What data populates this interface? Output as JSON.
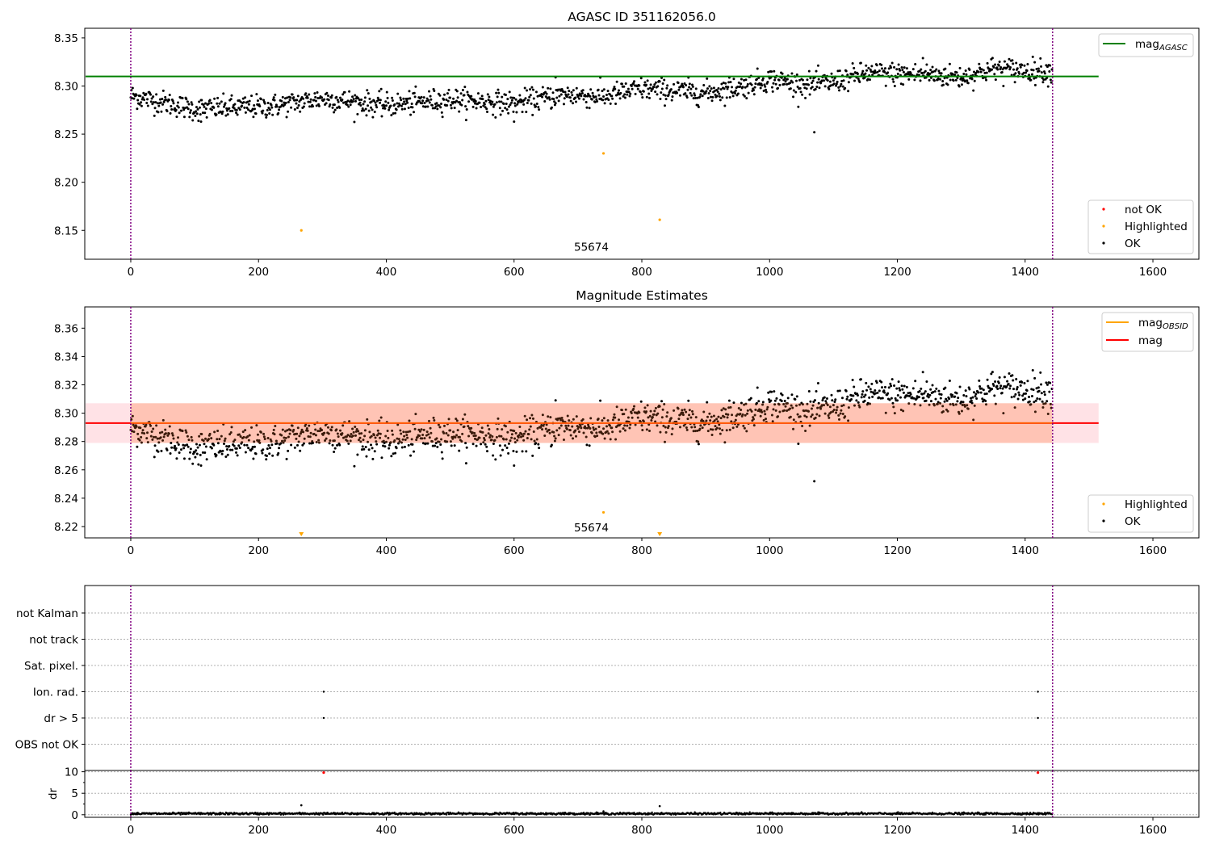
{
  "figure": {
    "panel1_title": "AGASC ID 351162056.0",
    "panel2_title": "Magnitude Estimates"
  },
  "colors": {
    "ok": "#000000",
    "highlighted": "#ffa500",
    "not_ok": "#ff0000",
    "agasc_line": "#008000",
    "mag_line": "#ff0000",
    "obsid_line": "#ffa500",
    "obs_boundary": "#800080",
    "band_outer": "#ffb6c1",
    "band_inner": "#ffa07a"
  },
  "chart_data": [
    {
      "type": "scatter",
      "title": "AGASC ID 351162056.0",
      "xlim": [
        -72,
        1672
      ],
      "ylim": [
        8.12,
        8.36
      ],
      "xticks": [
        0,
        200,
        400,
        600,
        800,
        1000,
        1200,
        1400,
        1600
      ],
      "yticks": [
        8.15,
        8.2,
        8.25,
        8.3,
        8.35
      ],
      "x_range_points": [
        0,
        1442
      ],
      "trend": [
        [
          0,
          8.29
        ],
        [
          100,
          8.276
        ],
        [
          220,
          8.279
        ],
        [
          300,
          8.287
        ],
        [
          400,
          8.28
        ],
        [
          500,
          8.286
        ],
        [
          600,
          8.282
        ],
        [
          680,
          8.291
        ],
        [
          740,
          8.289
        ],
        [
          800,
          8.297
        ],
        [
          900,
          8.293
        ],
        [
          960,
          8.3
        ],
        [
          1000,
          8.307
        ],
        [
          1060,
          8.301
        ],
        [
          1100,
          8.304
        ],
        [
          1150,
          8.313
        ],
        [
          1250,
          8.312
        ],
        [
          1300,
          8.309
        ],
        [
          1350,
          8.318
        ],
        [
          1442,
          8.315
        ]
      ],
      "scatter_noise": 0.006,
      "outliers_ok": [
        [
          1070,
          8.252
        ],
        [
          600,
          8.263
        ],
        [
          110,
          8.263
        ],
        [
          665,
          8.309
        ],
        [
          1240,
          8.329
        ]
      ],
      "highlighted": [
        [
          267,
          8.15
        ],
        [
          740,
          8.23
        ],
        [
          828,
          8.161
        ]
      ],
      "agasc_mag": 8.31,
      "agasc_line_x": [
        -72,
        1515
      ],
      "obs_boundaries": [
        0,
        1443
      ],
      "annotation": {
        "text": "55674",
        "x": 721,
        "y": 8.127
      },
      "legend_top": [
        {
          "label": "mag",
          "sub": "AGASC",
          "kind": "line",
          "color": "#008000"
        }
      ],
      "legend_bottom": [
        {
          "label": "not OK",
          "kind": "point",
          "color": "#ff0000"
        },
        {
          "label": "Highlighted",
          "kind": "point",
          "color": "#ffa500"
        },
        {
          "label": "OK",
          "kind": "point",
          "color": "#000000"
        }
      ]
    },
    {
      "type": "scatter",
      "title": "Magnitude Estimates",
      "xlim": [
        -72,
        1672
      ],
      "ylim": [
        8.212,
        8.375
      ],
      "xticks": [
        0,
        200,
        400,
        600,
        800,
        1000,
        1200,
        1400,
        1600
      ],
      "yticks": [
        8.22,
        8.24,
        8.26,
        8.28,
        8.3,
        8.32,
        8.34,
        8.36
      ],
      "highlighted": [
        [
          740,
          8.23
        ]
      ],
      "highlighted_offscale": [
        [
          267,
          8.214
        ],
        [
          828,
          8.214
        ]
      ],
      "mag": 8.293,
      "mag_band_outer": [
        8.279,
        8.307
      ],
      "mag_band_inner_x": [
        0,
        1442
      ],
      "mag_line_x": [
        -72,
        1515
      ],
      "obsid_segments": [
        {
          "x": [
            0,
            1442
          ],
          "mag": 8.293
        }
      ],
      "obs_boundaries": [
        0,
        1443
      ],
      "annotation": {
        "text": "55674",
        "x": 721,
        "y": 8.2155
      },
      "legend_top": [
        {
          "label": "mag",
          "sub": "OBSID",
          "kind": "line",
          "color": "#ffa500"
        },
        {
          "label": "mag",
          "kind": "line",
          "color": "#ff0000"
        }
      ],
      "legend_bottom": [
        {
          "label": "Highlighted",
          "kind": "point",
          "color": "#ffa500"
        },
        {
          "label": "OK",
          "kind": "point",
          "color": "#000000"
        }
      ]
    },
    {
      "type": "scatter",
      "title": "",
      "xlim": [
        -72,
        1672
      ],
      "flag_rows": [
        "not Kalman",
        "not track",
        "Sat. pixel.",
        "Ion. rad.",
        "dr > 5",
        "OBS not OK"
      ],
      "flag_points": [
        {
          "row": "Ion. rad.",
          "x": [
            302,
            1420
          ]
        },
        {
          "row": "dr > 5",
          "x": [
            302,
            1420
          ]
        }
      ],
      "obs_boundaries": [
        0,
        1443
      ]
    },
    {
      "type": "scatter",
      "title": "",
      "ylabel": "dr",
      "xlim": [
        -72,
        1672
      ],
      "ylim": [
        -0.6,
        10.3
      ],
      "yticks": [
        0,
        5,
        10
      ],
      "xticks": [
        0,
        200,
        400,
        600,
        800,
        1000,
        1200,
        1400,
        1600
      ],
      "dr_baseline": 0.25,
      "dr_noise": 0.2,
      "dr_points_ok": [
        [
          267,
          2.2
        ],
        [
          740,
          0.8
        ],
        [
          828,
          2.0
        ]
      ],
      "dr_points_not_ok": [
        [
          302,
          9.8
        ],
        [
          1420,
          9.8
        ]
      ],
      "obs_boundaries": [
        0,
        1443
      ]
    }
  ]
}
